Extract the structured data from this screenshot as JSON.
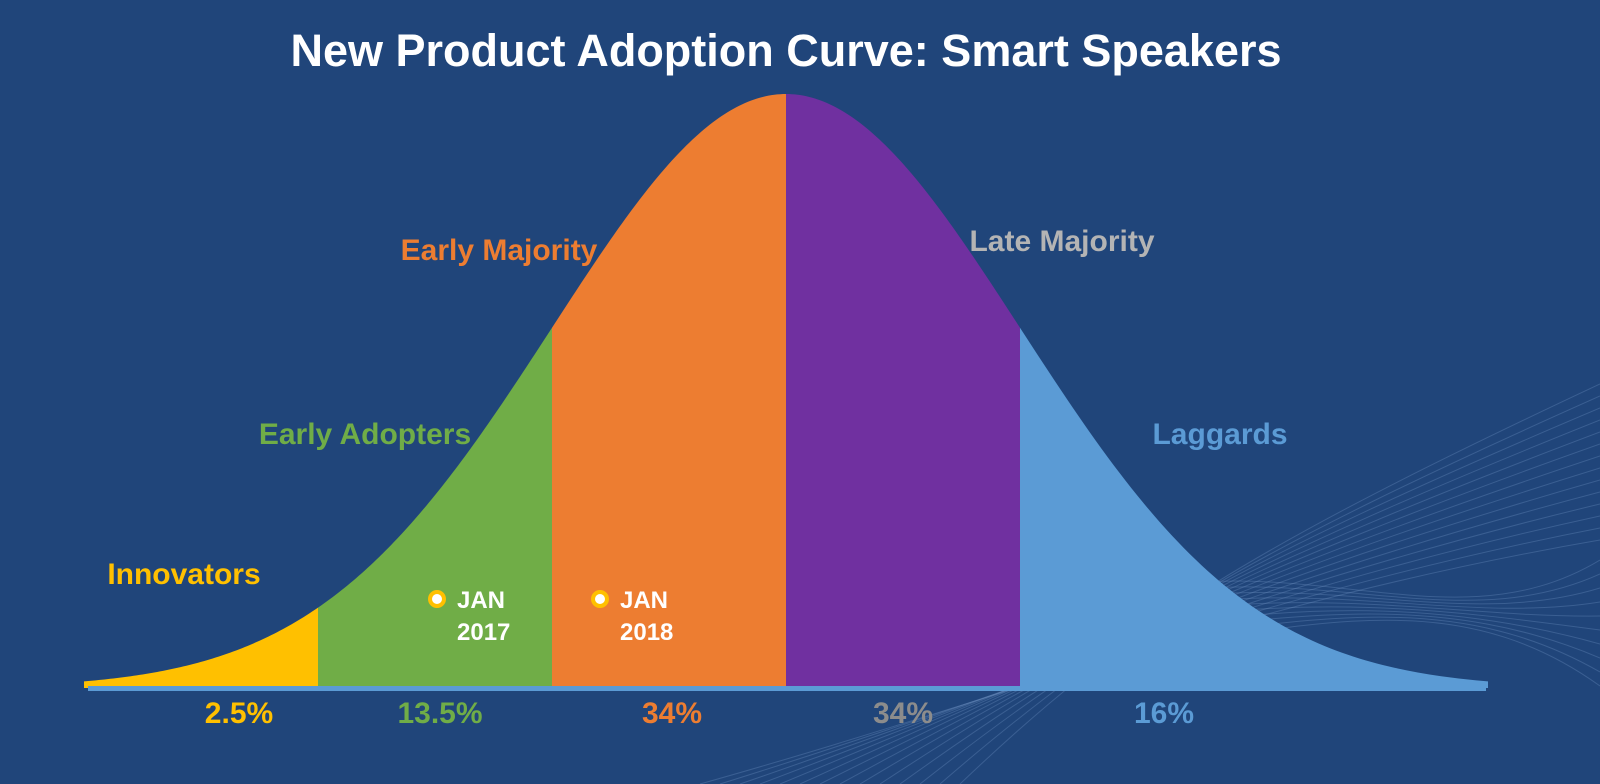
{
  "chart_data": {
    "type": "area",
    "title": "New Product Adoption Curve: Smart Speakers",
    "distribution": "normal",
    "x_range_sd": [
      -3,
      3
    ],
    "segments": [
      {
        "name": "Innovators",
        "percent": "2.5%",
        "from_sd": -3,
        "to_sd": -2,
        "color": "#ffc000",
        "label_color": "#ffc000",
        "percent_color": "#ffc000"
      },
      {
        "name": "Early Adopters",
        "percent": "13.5%",
        "from_sd": -2,
        "to_sd": -1,
        "color": "#70ad47",
        "label_color": "#70ad47",
        "percent_color": "#70ad47"
      },
      {
        "name": "Early Majority",
        "percent": "34%",
        "from_sd": -1,
        "to_sd": 0,
        "color": "#ed7d31",
        "label_color": "#ed7d31",
        "percent_color": "#ed7d31"
      },
      {
        "name": "Late Majority",
        "percent": "34%",
        "from_sd": 0,
        "to_sd": 1,
        "color": "#7030a0",
        "label_color": "#b4b4b4",
        "percent_color": "#8c8c8c"
      },
      {
        "name": "Laggards",
        "percent": "16%",
        "from_sd": 1,
        "to_sd": 3,
        "color": "#5b9bd5",
        "label_color": "#5b9bd5",
        "percent_color": "#5b9bd5"
      }
    ],
    "markers": [
      {
        "month": "JAN",
        "year": "2017",
        "at_sd": -1.5
      },
      {
        "month": "JAN",
        "year": "2018",
        "at_sd": -0.8
      }
    ],
    "baseline_color": "#5b9bd5",
    "marker_ring_color": "#ffc000"
  }
}
